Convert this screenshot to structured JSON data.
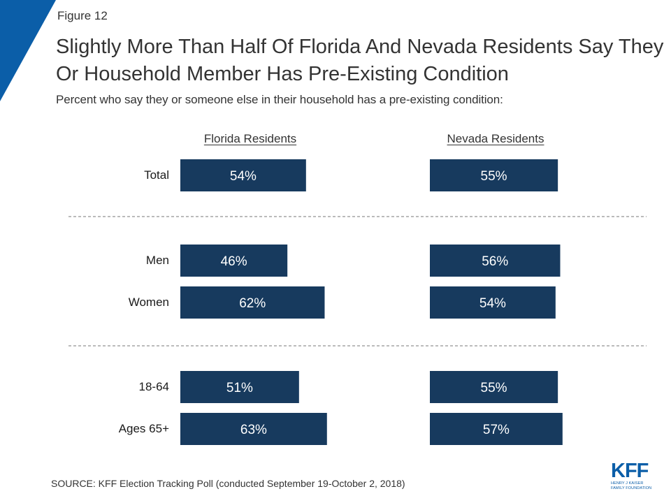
{
  "figure_label": "Figure 12",
  "title": "Slightly More Than Half Of Florida And Nevada Residents Say They Or Household Member Has Pre-Existing Condition",
  "subtitle": "Percent who say they or someone else in their household has a pre-existing condition:",
  "source": "SOURCE: KFF Election Tracking Poll (conducted September 19-October 2, 2018)",
  "logo": {
    "main": "KFF",
    "line1": "HENRY J KAISER",
    "line2": "FAMILY FOUNDATION"
  },
  "colors": {
    "bar": "#173a5e",
    "corner": "#0b5ea8",
    "divider": "#777777"
  },
  "chart_data": {
    "type": "bar",
    "orientation": "horizontal",
    "categories": [
      "Total",
      "Men",
      "Women",
      "18-64",
      "Ages 65+"
    ],
    "groups": [
      [
        "Total"
      ],
      [
        "Men",
        "Women"
      ],
      [
        "18-64",
        "Ages 65+"
      ]
    ],
    "series": [
      {
        "name": "Florida Residents",
        "values": [
          54,
          46,
          62,
          51,
          63
        ],
        "labels": [
          "54%",
          "46%",
          "62%",
          "51%",
          "63%"
        ]
      },
      {
        "name": "Nevada Residents",
        "values": [
          55,
          56,
          54,
          55,
          57
        ],
        "labels": [
          "55%",
          "56%",
          "54%",
          "55%",
          "57%"
        ]
      }
    ],
    "value_unit": "%",
    "xlim": [
      0,
      100
    ],
    "grid": false
  }
}
